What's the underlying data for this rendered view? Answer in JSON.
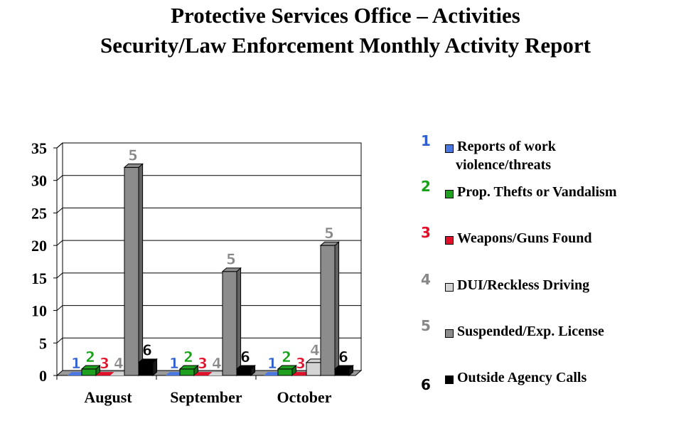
{
  "chart_data": {
    "type": "bar",
    "title": "Protective Services Office – Activities",
    "subtitle": "Security/Law Enforcement Monthly Activity Report",
    "categories": [
      "August",
      "September",
      "October"
    ],
    "series": [
      {
        "id": "1",
        "name": "Reports of work violence/threats",
        "color": "#4a78e0",
        "values": [
          0,
          0,
          0
        ]
      },
      {
        "id": "2",
        "name": "Prop. Thefts or Vandalism",
        "color": "#1fa01f",
        "values": [
          1,
          1,
          1
        ]
      },
      {
        "id": "3",
        "name": "Weapons/Guns Found",
        "color": "#e0102a",
        "values": [
          0,
          0,
          0
        ]
      },
      {
        "id": "4",
        "name": "DUI/Reckless Driving",
        "color": "#d4d4d4",
        "values": [
          0,
          0,
          2
        ]
      },
      {
        "id": "5",
        "name": "Suspended/Exp. License",
        "color": "#8c8c8c",
        "values": [
          32,
          16,
          20
        ]
      },
      {
        "id": "6",
        "name": "Outside Agency Calls",
        "color": "#000000",
        "values": [
          2,
          1,
          1
        ]
      }
    ],
    "legend_label_lines": [
      [
        "Reports of work",
        "violence/threats"
      ],
      [
        "Prop. Thefts or Vandalism"
      ],
      [
        "Weapons/Guns Found"
      ],
      [
        "DUI/Reckless Driving"
      ],
      [
        "Suspended/Exp. License"
      ],
      [
        "Outside Agency Calls"
      ]
    ],
    "number_colors": [
      "#3060d0",
      "#18a018",
      "#e0102a",
      "#888888",
      "#888888",
      "#000000"
    ],
    "yticks": [
      0,
      5,
      10,
      15,
      20,
      25,
      30,
      35
    ],
    "ylim": [
      0,
      35
    ],
    "xlabel": "",
    "ylabel": "",
    "grid": true,
    "legend_position": "right"
  }
}
